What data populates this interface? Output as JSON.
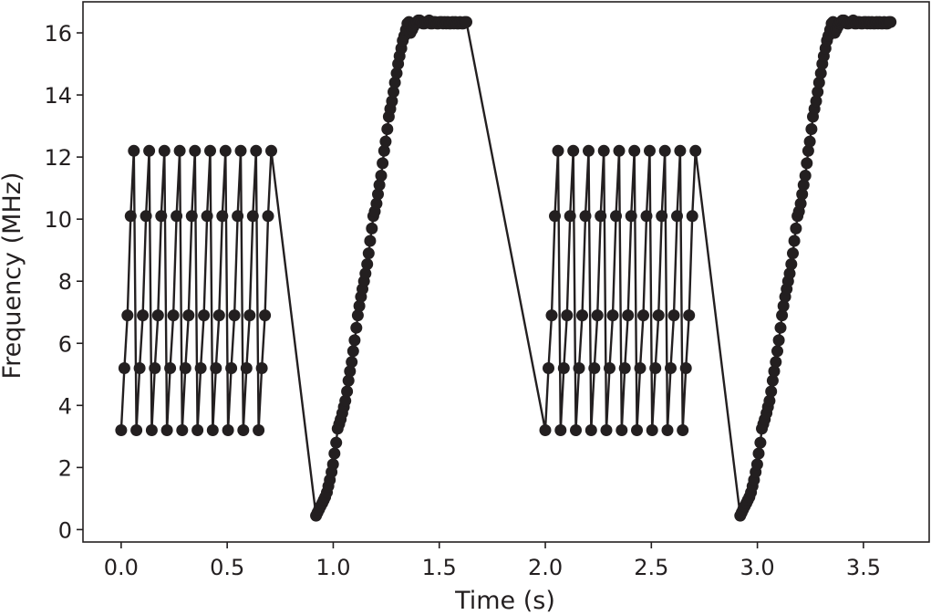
{
  "chart_data": {
    "type": "line",
    "title": "",
    "xlabel": "Time (s)",
    "ylabel": "Frequency (MHz)",
    "xlim": [
      -0.18,
      3.81
    ],
    "ylim": [
      -0.4,
      17.0
    ],
    "xticks": [
      0.0,
      0.5,
      1.0,
      1.5,
      2.0,
      2.5,
      3.0,
      3.5
    ],
    "xtick_labels": [
      "0.0",
      "0.5",
      "1.0",
      "1.5",
      "2.0",
      "2.5",
      "3.0",
      "3.5"
    ],
    "yticks": [
      0,
      2,
      4,
      6,
      8,
      10,
      12,
      14,
      16
    ],
    "ytick_labels": [
      "0",
      "2",
      "4",
      "6",
      "8",
      "10",
      "12",
      "14",
      "16"
    ],
    "grid": false,
    "legend": "none",
    "colors": {
      "line": "#231f20",
      "marker": "#231f20",
      "frame": "#231f20"
    },
    "series": [
      {
        "x": [
          0.0,
          0.015,
          0.03,
          0.045,
          0.06,
          0.072,
          0.087,
          0.102,
          0.117,
          0.132,
          0.144,
          0.159,
          0.174,
          0.189,
          0.204,
          0.216,
          0.231,
          0.246,
          0.261,
          0.276,
          0.288,
          0.303,
          0.318,
          0.333,
          0.348,
          0.36,
          0.375,
          0.39,
          0.405,
          0.42,
          0.432,
          0.447,
          0.462,
          0.477,
          0.492,
          0.504,
          0.519,
          0.534,
          0.549,
          0.564,
          0.576,
          0.591,
          0.606,
          0.621,
          0.636,
          0.648,
          0.663,
          0.678,
          0.693,
          0.708,
          0.919,
          0.926,
          0.933,
          0.94,
          0.948,
          0.955,
          0.962,
          0.97,
          0.977,
          0.984,
          0.992,
          0.999,
          1.006,
          1.014,
          1.021,
          1.028,
          1.035,
          1.043,
          1.05,
          1.057,
          1.065,
          1.072,
          1.079,
          1.087,
          1.094,
          1.101,
          1.109,
          1.116,
          1.123,
          1.131,
          1.138,
          1.145,
          1.152,
          1.16,
          1.167,
          1.174,
          1.182,
          1.189,
          1.196,
          1.204,
          1.211,
          1.218,
          1.226,
          1.233,
          1.24,
          1.247,
          1.255,
          1.262,
          1.269,
          1.277,
          1.284,
          1.291,
          1.299,
          1.306,
          1.313,
          1.321,
          1.328,
          1.335,
          1.343,
          1.35,
          1.357,
          1.364,
          1.372,
          1.379,
          1.386,
          1.394,
          1.401,
          1.408,
          1.416,
          1.423,
          1.43,
          1.438,
          1.445,
          1.452,
          1.459,
          1.467,
          1.474,
          1.481,
          1.489,
          1.496,
          1.503,
          1.511,
          1.518,
          1.525,
          1.533,
          1.54,
          1.547,
          1.554,
          1.562,
          1.569,
          1.576,
          1.584,
          1.591,
          1.598,
          1.606,
          1.613,
          1.62,
          1.628,
          2.0,
          2.015,
          2.03,
          2.045,
          2.06,
          2.072,
          2.087,
          2.102,
          2.117,
          2.132,
          2.144,
          2.159,
          2.174,
          2.189,
          2.204,
          2.216,
          2.231,
          2.246,
          2.261,
          2.276,
          2.288,
          2.303,
          2.318,
          2.333,
          2.348,
          2.36,
          2.375,
          2.39,
          2.405,
          2.42,
          2.432,
          2.447,
          2.462,
          2.477,
          2.492,
          2.504,
          2.519,
          2.534,
          2.549,
          2.564,
          2.576,
          2.591,
          2.606,
          2.621,
          2.636,
          2.648,
          2.663,
          2.678,
          2.693,
          2.708,
          2.919,
          2.926,
          2.933,
          2.94,
          2.948,
          2.955,
          2.962,
          2.97,
          2.977,
          2.984,
          2.992,
          2.999,
          3.006,
          3.014,
          3.021,
          3.028,
          3.035,
          3.043,
          3.05,
          3.057,
          3.065,
          3.072,
          3.079,
          3.087,
          3.094,
          3.101,
          3.109,
          3.116,
          3.123,
          3.131,
          3.138,
          3.145,
          3.152,
          3.16,
          3.167,
          3.174,
          3.182,
          3.189,
          3.196,
          3.204,
          3.211,
          3.218,
          3.226,
          3.233,
          3.24,
          3.247,
          3.255,
          3.262,
          3.269,
          3.277,
          3.284,
          3.291,
          3.299,
          3.306,
          3.313,
          3.321,
          3.328,
          3.335,
          3.343,
          3.35,
          3.357,
          3.364,
          3.372,
          3.379,
          3.386,
          3.394,
          3.401,
          3.408,
          3.416,
          3.423,
          3.43,
          3.438,
          3.445,
          3.452,
          3.459,
          3.467,
          3.474,
          3.481,
          3.489,
          3.496,
          3.503,
          3.511,
          3.518,
          3.525,
          3.533,
          3.54,
          3.547,
          3.554,
          3.562,
          3.569,
          3.576,
          3.584,
          3.591,
          3.598,
          3.606,
          3.613,
          3.62,
          3.628
        ],
        "y": [
          3.2,
          5.2,
          6.9,
          10.1,
          12.2,
          3.2,
          5.2,
          6.9,
          10.1,
          12.2,
          3.2,
          5.2,
          6.9,
          10.1,
          12.2,
          3.2,
          5.2,
          6.9,
          10.1,
          12.2,
          3.2,
          5.2,
          6.9,
          10.1,
          12.2,
          3.2,
          5.2,
          6.9,
          10.1,
          12.2,
          3.2,
          5.2,
          6.9,
          10.1,
          12.2,
          3.2,
          5.2,
          6.9,
          10.1,
          12.2,
          3.2,
          5.2,
          6.9,
          10.1,
          12.2,
          3.2,
          5.2,
          6.9,
          10.1,
          12.2,
          0.45,
          0.55,
          0.65,
          0.75,
          0.85,
          0.95,
          1.05,
          1.2,
          1.4,
          1.6,
          1.85,
          2.1,
          2.45,
          2.8,
          3.25,
          3.4,
          3.55,
          3.75,
          3.95,
          4.15,
          4.45,
          4.8,
          5.1,
          5.4,
          5.75,
          6.1,
          6.5,
          6.9,
          7.2,
          7.5,
          7.75,
          8.0,
          8.25,
          8.55,
          8.9,
          9.3,
          9.7,
          10.1,
          10.25,
          10.5,
          10.8,
          11.1,
          11.4,
          11.8,
          12.2,
          12.5,
          12.9,
          13.3,
          13.55,
          13.8,
          14.1,
          14.4,
          14.7,
          15.0,
          15.25,
          15.5,
          15.75,
          15.9,
          16.1,
          16.3,
          16.35,
          16.0,
          16.1,
          16.2,
          16.3,
          16.35,
          16.4,
          16.4,
          16.35,
          16.3,
          16.3,
          16.35,
          16.35,
          16.4,
          16.3,
          16.3,
          16.35,
          16.35,
          16.3,
          16.3,
          16.35,
          16.35,
          16.3,
          16.35,
          16.3,
          16.35,
          16.3,
          16.3,
          16.35,
          16.3,
          16.35,
          16.3,
          16.3,
          16.35,
          16.3,
          16.3,
          16.35,
          16.35,
          3.2,
          5.2,
          6.9,
          10.1,
          12.2,
          3.2,
          5.2,
          6.9,
          10.1,
          12.2,
          3.2,
          5.2,
          6.9,
          10.1,
          12.2,
          3.2,
          5.2,
          6.9,
          10.1,
          12.2,
          3.2,
          5.2,
          6.9,
          10.1,
          12.2,
          3.2,
          5.2,
          6.9,
          10.1,
          12.2,
          3.2,
          5.2,
          6.9,
          10.1,
          12.2,
          3.2,
          5.2,
          6.9,
          10.1,
          12.2,
          3.2,
          5.2,
          6.9,
          10.1,
          12.2,
          3.2,
          5.2,
          6.9,
          10.1,
          12.2,
          0.45,
          0.55,
          0.65,
          0.75,
          0.85,
          0.95,
          1.05,
          1.2,
          1.4,
          1.6,
          1.85,
          2.1,
          2.45,
          2.8,
          3.25,
          3.4,
          3.55,
          3.75,
          3.95,
          4.15,
          4.45,
          4.8,
          5.1,
          5.4,
          5.75,
          6.1,
          6.5,
          6.9,
          7.2,
          7.5,
          7.75,
          8.0,
          8.25,
          8.55,
          8.9,
          9.3,
          9.7,
          10.1,
          10.25,
          10.5,
          10.8,
          11.1,
          11.4,
          11.8,
          12.2,
          12.5,
          12.9,
          13.3,
          13.55,
          13.8,
          14.1,
          14.4,
          14.7,
          15.0,
          15.25,
          15.5,
          15.75,
          15.9,
          16.1,
          16.3,
          16.35,
          16.0,
          16.1,
          16.2,
          16.3,
          16.35,
          16.4,
          16.4,
          16.35,
          16.3,
          16.3,
          16.35,
          16.35,
          16.4,
          16.3,
          16.3,
          16.35,
          16.35,
          16.3,
          16.3,
          16.35,
          16.35,
          16.3,
          16.35,
          16.3,
          16.35,
          16.3,
          16.3,
          16.35,
          16.3,
          16.35,
          16.3,
          16.3,
          16.35,
          16.3,
          16.3,
          16.35,
          16.35
        ]
      }
    ]
  }
}
